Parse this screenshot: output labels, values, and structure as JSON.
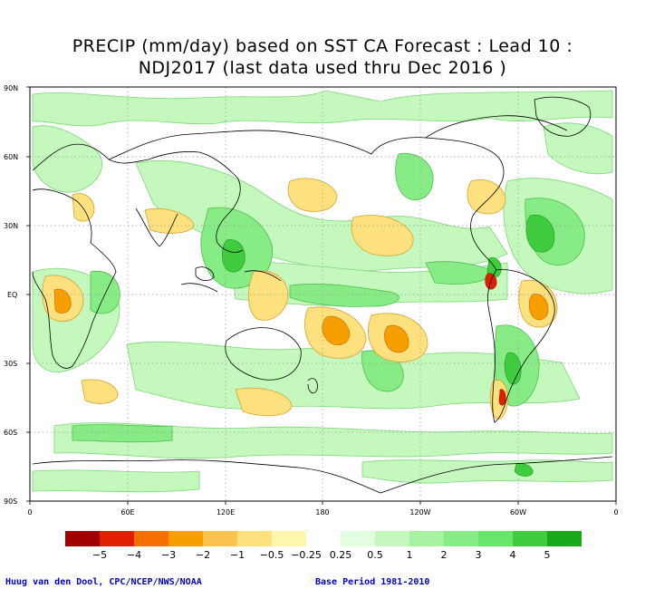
{
  "title": {
    "line1": "PRECIP (mm/day) based on SST CA Forecast : Lead 10 :",
    "line2": "NDJ2017 (last data used thru Dec 2016 )"
  },
  "map": {
    "lat_ticks": [
      "90N",
      "60N",
      "30N",
      "EQ",
      "30S",
      "60S",
      "90S"
    ],
    "lon_ticks": [
      "0",
      "60E",
      "120E",
      "180",
      "120W",
      "60W",
      "0"
    ],
    "grid": true
  },
  "legend": {
    "colors": [
      "#a00000",
      "#e01e00",
      "#f56e00",
      "#f79e00",
      "#fbc44e",
      "#fde17e",
      "#fef6ad",
      "#ffffff",
      "#e3fde0",
      "#c4f8bc",
      "#a6f2a0",
      "#88ec86",
      "#6ae66a",
      "#3fcc3f",
      "#18a818"
    ],
    "labels": [
      "−5",
      "−4",
      "−3",
      "−2",
      "−1",
      "−0.5",
      "−0.25",
      "0.25",
      "0.5",
      "1",
      "2",
      "3",
      "4",
      "5"
    ]
  },
  "footer": {
    "credit": "Huug van den Dool, CPC/NCEP/NWS/NOAA",
    "base_period": "Base Period 1981-2010"
  }
}
